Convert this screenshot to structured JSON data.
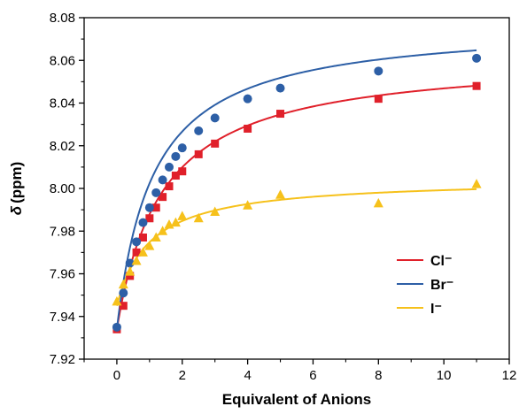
{
  "chart_data": {
    "type": "scatter",
    "title": "",
    "xlabel": "Equivalent of Anions",
    "ylabel_symbol": "δ",
    "ylabel_unit": "(ppm)",
    "xlim": [
      -1,
      12
    ],
    "ylim": [
      7.92,
      8.08
    ],
    "x_ticks": [
      0,
      2,
      4,
      6,
      8,
      10,
      12
    ],
    "y_ticks": [
      7.92,
      7.94,
      7.96,
      7.98,
      8.0,
      8.02,
      8.04,
      8.06,
      8.08
    ],
    "grid": false,
    "legend_position": "right-center",
    "series": [
      {
        "name": "Cl⁻",
        "color": "#e0202a",
        "marker": "square",
        "x": [
          0,
          0.2,
          0.4,
          0.6,
          0.8,
          1.0,
          1.2,
          1.4,
          1.6,
          1.8,
          2.0,
          2.5,
          3.0,
          4.0,
          5.0,
          8.0,
          11.0
        ],
        "y": [
          7.934,
          7.945,
          7.959,
          7.97,
          7.977,
          7.986,
          7.991,
          7.996,
          8.001,
          8.006,
          8.008,
          8.016,
          8.021,
          8.028,
          8.035,
          8.042,
          8.048
        ],
        "fit": {
          "y0": 7.934,
          "amax": 0.1285,
          "k": 0.722
        }
      },
      {
        "name": "Br⁻",
        "color": "#2d5fa6",
        "marker": "circle",
        "x": [
          0,
          0.2,
          0.4,
          0.6,
          0.8,
          1.0,
          1.2,
          1.4,
          1.6,
          1.8,
          2.0,
          2.5,
          3.0,
          4.0,
          5.0,
          8.0,
          11.0
        ],
        "y": [
          7.935,
          7.951,
          7.965,
          7.975,
          7.984,
          7.991,
          7.998,
          8.004,
          8.01,
          8.015,
          8.019,
          8.027,
          8.033,
          8.042,
          8.047,
          8.055,
          8.061
        ],
        "fit": {
          "y0": 7.934,
          "amax": 0.1438,
          "k": 0.9064
        }
      },
      {
        "name": "I⁻",
        "color": "#f6c11b",
        "marker": "triangle",
        "x": [
          0,
          0.2,
          0.4,
          0.6,
          0.8,
          1.0,
          1.2,
          1.4,
          1.6,
          1.8,
          2.0,
          2.5,
          3.0,
          4.0,
          5.0,
          8.0,
          11.0
        ],
        "y": [
          7.947,
          7.955,
          7.961,
          7.966,
          7.97,
          7.973,
          7.977,
          7.98,
          7.983,
          7.984,
          7.987,
          7.986,
          7.989,
          7.992,
          7.997,
          7.993,
          8.002
        ],
        "fit": {
          "y0": 7.945,
          "amax": 0.0596,
          "k": 1.0
        }
      }
    ]
  }
}
